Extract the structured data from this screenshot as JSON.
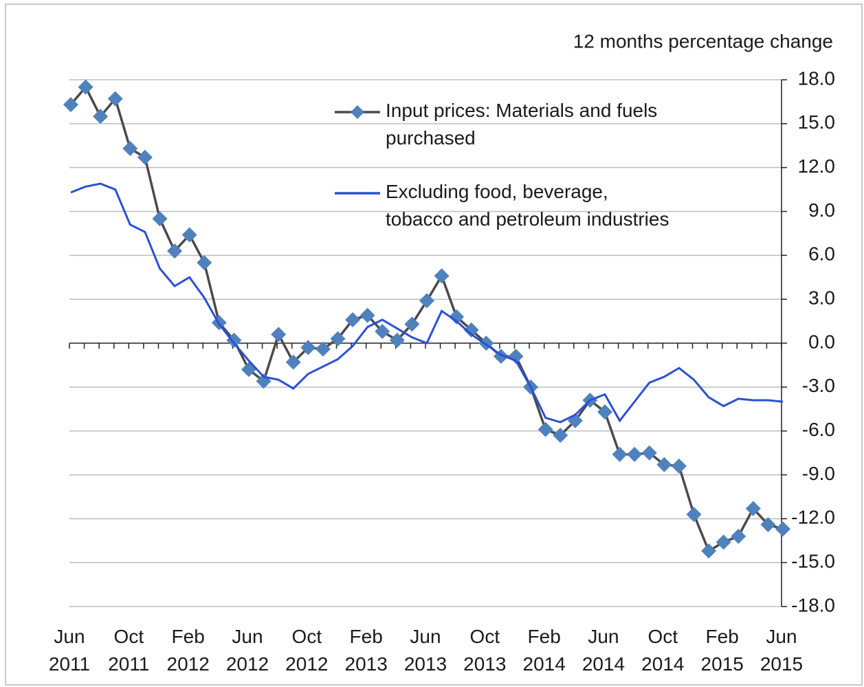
{
  "chart_data": {
    "type": "line",
    "y_axis_label": "12 months percentage change",
    "categories": [
      "Jun 2011",
      null,
      null,
      null,
      "Oct 2011",
      null,
      null,
      null,
      "Feb 2012",
      null,
      null,
      null,
      "Jun 2012",
      null,
      null,
      null,
      "Oct 2012",
      null,
      null,
      null,
      "Feb 2013",
      null,
      null,
      null,
      "Jun 2013",
      null,
      null,
      null,
      "Oct 2013",
      null,
      null,
      null,
      "Feb 2014",
      null,
      null,
      null,
      "Jun 2014",
      null,
      null,
      null,
      "Oct 2014",
      null,
      null,
      null,
      "Feb 2015",
      null,
      null,
      null,
      "Jun 2015"
    ],
    "series": [
      {
        "name": "Input prices: Materials and fuels purchased",
        "color": "#4a4a4a",
        "marker_color": "#4f81bd",
        "marker": "diamond",
        "values": [
          16.3,
          17.5,
          15.5,
          16.7,
          13.3,
          12.7,
          8.5,
          6.3,
          7.4,
          5.5,
          1.4,
          0.2,
          -1.8,
          -2.6,
          0.6,
          -1.3,
          -0.3,
          -0.4,
          0.3,
          1.6,
          1.9,
          0.8,
          0.2,
          1.3,
          2.9,
          4.6,
          1.8,
          0.9,
          0.0,
          -0.9,
          -0.9,
          -3.0,
          -5.9,
          -6.3,
          -5.3,
          -3.9,
          -4.7,
          -7.6,
          -7.6,
          -7.5,
          -8.3,
          -8.4,
          -11.7,
          -14.2,
          -13.6,
          -13.2,
          -11.3,
          -12.4,
          -12.7
        ]
      },
      {
        "name": "Excluding food, beverage, tobacco and petroleum industries",
        "color": "#2a4fd6",
        "values": [
          10.3,
          10.7,
          10.9,
          10.5,
          8.1,
          7.6,
          5.1,
          3.9,
          4.5,
          3.1,
          1.3,
          0.0,
          -1.2,
          -2.3,
          -2.5,
          -3.1,
          -2.1,
          -1.6,
          -1.1,
          -0.2,
          1.1,
          1.6,
          1.0,
          0.4,
          0.0,
          2.2,
          1.5,
          0.6,
          -0.1,
          -0.8,
          -1.2,
          -3.0,
          -5.1,
          -5.4,
          -4.9,
          -3.9,
          -3.5,
          -5.3,
          -4.0,
          -2.7,
          -2.3,
          -1.7,
          -2.5,
          -3.7,
          -4.3,
          -3.8,
          -3.9,
          -3.9,
          -4.0
        ]
      }
    ],
    "ylim": [
      -18,
      18
    ],
    "yticks": [
      {
        "value": 18,
        "label": "18.0"
      },
      {
        "value": 15,
        "label": "15.0"
      },
      {
        "value": 12,
        "label": "12.0"
      },
      {
        "value": 9,
        "label": "9.0"
      },
      {
        "value": 6,
        "label": "6.0"
      },
      {
        "value": 3,
        "label": "3.0"
      },
      {
        "value": 0,
        "label": "0.0"
      },
      {
        "value": -3,
        "label": "-3.0"
      },
      {
        "value": -6,
        "label": "-6.0"
      },
      {
        "value": -9,
        "label": "-9.0"
      },
      {
        "value": -12,
        "label": "-12.0"
      },
      {
        "value": -15,
        "label": "-15.0"
      },
      {
        "value": -18,
        "label": "-18.0"
      }
    ],
    "y_axis_position": "right",
    "grid": true,
    "legend": "top-right"
  }
}
